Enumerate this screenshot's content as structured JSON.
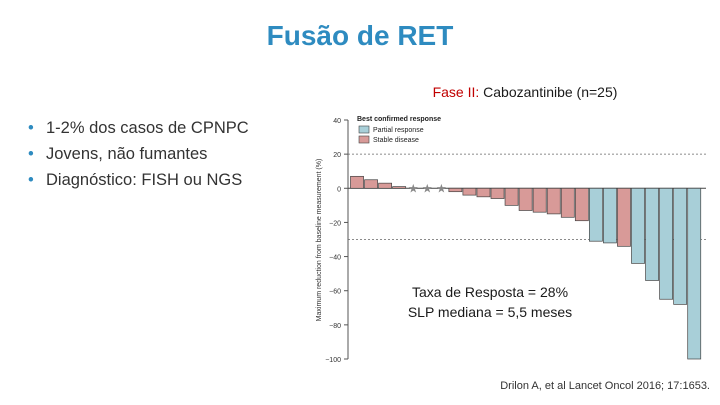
{
  "slide": {
    "title": "Fusão de RET",
    "subtitle_prefix": "Fase II:",
    "subtitle_rest": " Cabozantinibe (n=25)",
    "bullets": [
      "1-2% dos casos de CPNPC",
      "Jovens, não fumantes",
      "Diagnóstico: FISH ou NGS"
    ],
    "annotation_line1": "Taxa de Resposta = 28%",
    "annotation_line2": "SLP mediana = 5,5 meses",
    "citation": "Drilon A, et al Lancet Oncol 2016; 17:1653."
  },
  "colors": {
    "title": "#2e8bc0",
    "partial_response": "#a8cfd8",
    "stable_disease": "#d89a98",
    "bar_stroke": "#444444"
  },
  "chart_data": {
    "type": "bar",
    "title": "",
    "xlabel": "",
    "ylabel": "Maximum reduction from baseline measurement (%)",
    "ylim": [
      -100,
      40
    ],
    "yticks": [
      40,
      20,
      0,
      -20,
      -40,
      -60,
      -80,
      -100
    ],
    "reference_lines": [
      20,
      -30
    ],
    "legend": {
      "title": "Best confirmed response",
      "placement": "top-left",
      "entries": [
        {
          "label": "Partial response",
          "category": "partial"
        },
        {
          "label": "Stable disease",
          "category": "stable"
        }
      ]
    },
    "bars": [
      {
        "value": 7,
        "category": "stable"
      },
      {
        "value": 5,
        "category": "stable"
      },
      {
        "value": 3,
        "category": "stable"
      },
      {
        "value": 1,
        "category": "stable"
      },
      {
        "value": 0,
        "category": "star"
      },
      {
        "value": 0,
        "category": "star"
      },
      {
        "value": 0,
        "category": "star"
      },
      {
        "value": -2,
        "category": "stable"
      },
      {
        "value": -4,
        "category": "stable"
      },
      {
        "value": -5,
        "category": "stable"
      },
      {
        "value": -6,
        "category": "stable"
      },
      {
        "value": -10,
        "category": "stable"
      },
      {
        "value": -13,
        "category": "stable"
      },
      {
        "value": -14,
        "category": "stable"
      },
      {
        "value": -15,
        "category": "stable"
      },
      {
        "value": -17,
        "category": "stable"
      },
      {
        "value": -19,
        "category": "stable"
      },
      {
        "value": -31,
        "category": "partial"
      },
      {
        "value": -32,
        "category": "partial"
      },
      {
        "value": -34,
        "category": "stable"
      },
      {
        "value": -44,
        "category": "partial"
      },
      {
        "value": -54,
        "category": "partial"
      },
      {
        "value": -65,
        "category": "partial"
      },
      {
        "value": -68,
        "category": "partial"
      },
      {
        "value": -100,
        "category": "partial"
      }
    ]
  }
}
